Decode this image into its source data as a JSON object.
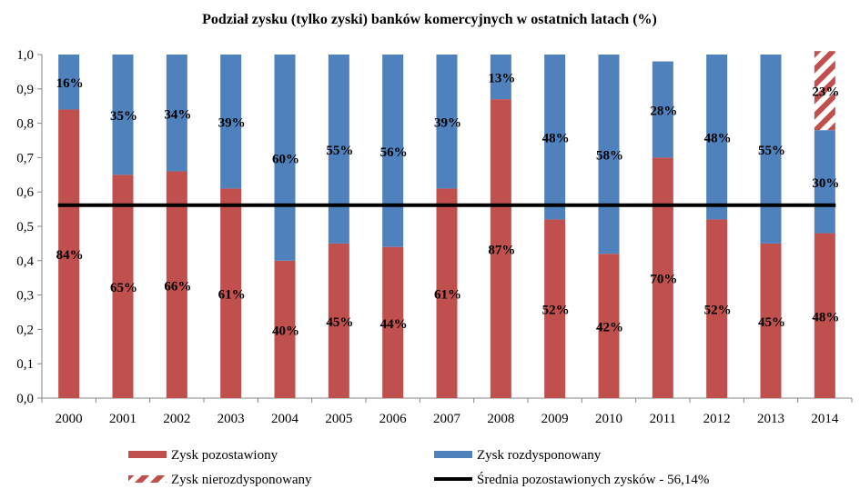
{
  "chart_data": {
    "type": "bar",
    "stacked": true,
    "title": "Podział zysku (tylko zyski) banków komercyjnych w ostatnich latach (%)",
    "categories": [
      "2000",
      "2001",
      "2002",
      "2003",
      "2004",
      "2005",
      "2006",
      "2007",
      "2008",
      "2009",
      "2010",
      "2011",
      "2012",
      "2013",
      "2014"
    ],
    "y_ticks": [
      "0,0",
      "0,1",
      "0,2",
      "0,3",
      "0,4",
      "0,5",
      "0,6",
      "0,7",
      "0,8",
      "0,9",
      "1,0"
    ],
    "ylim": [
      0,
      1
    ],
    "grid": false,
    "legend_position": "bottom",
    "series": [
      {
        "name": "Zysk pozostawiony",
        "color": "#C0504D",
        "values": [
          0.84,
          0.65,
          0.66,
          0.61,
          0.4,
          0.45,
          0.44,
          0.61,
          0.87,
          0.52,
          0.42,
          0.7,
          0.52,
          0.45,
          0.48
        ],
        "labels": [
          "84%",
          "65%",
          "66%",
          "61%",
          "40%",
          "45%",
          "44%",
          "61%",
          "87%",
          "52%",
          "42%",
          "70%",
          "52%",
          "45%",
          "48%"
        ]
      },
      {
        "name": "Zysk rozdysponowany",
        "color": "#4F81BD",
        "values": [
          0.16,
          0.35,
          0.34,
          0.39,
          0.6,
          0.55,
          0.56,
          0.39,
          0.13,
          0.48,
          0.58,
          0.28,
          0.48,
          0.55,
          0.3
        ],
        "labels": [
          "16%",
          "35%",
          "34%",
          "39%",
          "60%",
          "55%",
          "56%",
          "39%",
          "13%",
          "48%",
          "58%",
          "28%",
          "48%",
          "55%",
          "30%"
        ]
      },
      {
        "name": "Zysk nierozdysponowany",
        "color": "#C0504D",
        "pattern": "diagonal-stripes",
        "values": [
          0,
          0,
          0,
          0,
          0,
          0,
          0,
          0,
          0,
          0,
          0,
          0,
          0,
          0,
          0.23
        ],
        "labels": [
          "",
          "",
          "",
          "",
          "",
          "",
          "",
          "",
          "",
          "",
          "",
          "",
          "",
          "",
          "23%"
        ]
      }
    ],
    "average_line": {
      "name": "Średnia pozostawionych zysków - 56,14%",
      "value": 0.5614,
      "color": "#000000"
    }
  }
}
